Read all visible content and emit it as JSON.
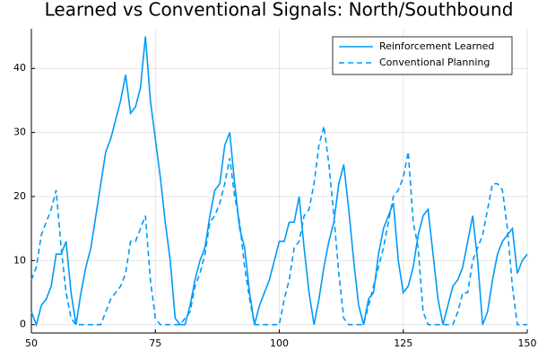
{
  "chart_data": {
    "type": "line",
    "title": "Learned vs Conventional Signals: North/Southbound",
    "x": [
      50,
      51,
      52,
      53,
      54,
      55,
      56,
      57,
      58,
      59,
      60,
      61,
      62,
      63,
      64,
      65,
      66,
      67,
      68,
      69,
      70,
      71,
      72,
      73,
      74,
      75,
      76,
      77,
      78,
      79,
      80,
      81,
      82,
      83,
      84,
      85,
      86,
      87,
      88,
      89,
      90,
      91,
      92,
      93,
      94,
      95,
      96,
      97,
      98,
      99,
      100,
      101,
      102,
      103,
      104,
      105,
      106,
      107,
      108,
      109,
      110,
      111,
      112,
      113,
      114,
      115,
      116,
      117,
      118,
      119,
      120,
      121,
      122,
      123,
      124,
      125,
      126,
      127,
      128,
      129,
      130,
      131,
      132,
      133,
      134,
      135,
      136,
      137,
      138,
      139,
      140,
      141,
      142,
      143,
      144,
      145,
      146,
      147,
      148,
      149,
      150
    ],
    "series": [
      {
        "name": "Reinforcement Learned",
        "color": "#009af9",
        "dash": false,
        "values": [
          2,
          0,
          3,
          4,
          6,
          11,
          11,
          13,
          5,
          0,
          5,
          9,
          12,
          17,
          22,
          27,
          29,
          32,
          35,
          39,
          33,
          34,
          37,
          45,
          35,
          29,
          23,
          16,
          10,
          1,
          0,
          0,
          3,
          7,
          10,
          12,
          17,
          21,
          22,
          28,
          30,
          22,
          15,
          12,
          5,
          0,
          3,
          5,
          7,
          10,
          13,
          13,
          16,
          16,
          20,
          12,
          5,
          0,
          4,
          9,
          13,
          16,
          22,
          25,
          18,
          10,
          3,
          0,
          4,
          5,
          11,
          15,
          17,
          19,
          10,
          5,
          6,
          9,
          14,
          17,
          18,
          11,
          4,
          0,
          3,
          6,
          7,
          9,
          13,
          17,
          10,
          0,
          2,
          7,
          11,
          13,
          14,
          15,
          8,
          10,
          11
        ]
      },
      {
        "name": "Conventional Planning",
        "color": "#009af9",
        "dash": true,
        "values": [
          7,
          9,
          14,
          16,
          18,
          21,
          12,
          5,
          1,
          0,
          0,
          0,
          0,
          0,
          0,
          2,
          4,
          5,
          6,
          8,
          13,
          13,
          15,
          17,
          7,
          1,
          0,
          0,
          0,
          0,
          0,
          1,
          2,
          6,
          8,
          11,
          16,
          17,
          19,
          22,
          26,
          20,
          16,
          9,
          4,
          0,
          0,
          0,
          0,
          0,
          0,
          4,
          7,
          12,
          13,
          17,
          18,
          22,
          28,
          31,
          25,
          17,
          8,
          1,
          0,
          0,
          0,
          0,
          3,
          6,
          9,
          12,
          16,
          20,
          21,
          23,
          27,
          16,
          12,
          2,
          0,
          0,
          0,
          0,
          0,
          0,
          2,
          5,
          5,
          10,
          12,
          14,
          18,
          22,
          22,
          21,
          15,
          6,
          0,
          0,
          0
        ]
      }
    ],
    "xlim": [
      50,
      150
    ],
    "ylim": [
      -1.3,
      46.2
    ],
    "xticks": [
      50,
      75,
      100,
      125,
      150
    ],
    "yticks": [
      0,
      10,
      20,
      30,
      40
    ],
    "grid": true,
    "legend": "top-right"
  }
}
